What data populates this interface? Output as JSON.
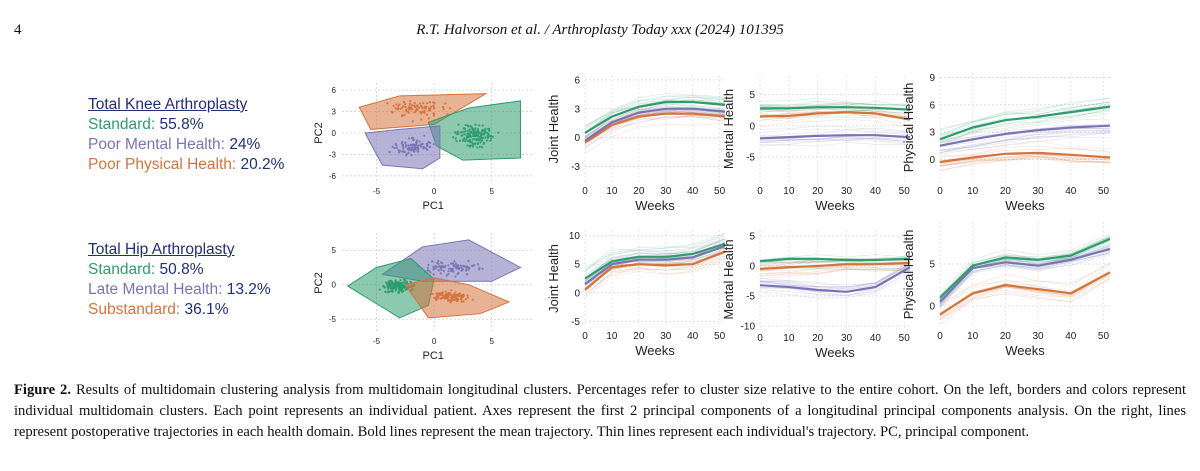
{
  "header": {
    "page_number": "4",
    "running_title": "R.T. Halvorson et al. / Arthroplasty Today xxx (2024) 101395"
  },
  "colors": {
    "green": "#2e9d6e",
    "purple": "#7a74b6",
    "orange": "#d5733c",
    "navy": "#1f2f7a"
  },
  "knee_legend": {
    "title": "Total Knee Arthroplasty",
    "items": [
      {
        "label": "Standard:",
        "value": "55.8%"
      },
      {
        "label": "Poor Mental Health:",
        "value": "24%"
      },
      {
        "label": "Poor Physical Health:",
        "value": "20.2%"
      }
    ]
  },
  "hip_legend": {
    "title": "Total Hip Arthroplasty",
    "items": [
      {
        "label": "Standard:",
        "value": "50.8%"
      },
      {
        "label": "Late Mental Health:",
        "value": "13.2%"
      },
      {
        "label": "Substandard:",
        "value": "36.1%"
      }
    ]
  },
  "chart_data": [
    {
      "id": "knee-pca",
      "type": "scatter",
      "title": "Total Knee Arthroplasty PCA",
      "xlabel": "PC1",
      "ylabel": "PC2",
      "xlim": [
        -8,
        8.5
      ],
      "ylim": [
        -7,
        7
      ],
      "xticks": [
        -5,
        0,
        5
      ],
      "yticks": [
        6,
        3,
        0,
        -3,
        -6
      ],
      "clusters": [
        {
          "name": "Poor Physical Health",
          "color": "orange",
          "n": 85,
          "center": [
            -1.5,
            3.3
          ],
          "spread": [
            2.8,
            1.6
          ],
          "hull": [
            [
              -6.5,
              3.6
            ],
            [
              -3,
              5.2
            ],
            [
              4.5,
              5.5
            ],
            [
              0,
              1.2
            ],
            [
              -5.5,
              0.5
            ]
          ]
        },
        {
          "name": "Standard",
          "color": "green",
          "n": 160,
          "center": [
            3.5,
            -0.4
          ],
          "spread": [
            2.1,
            1.9
          ],
          "hull": [
            [
              0.2,
              -1.8
            ],
            [
              -0.5,
              1.5
            ],
            [
              3,
              3.5
            ],
            [
              7.5,
              4.5
            ],
            [
              7.5,
              -3.5
            ],
            [
              2.5,
              -3.8
            ]
          ]
        },
        {
          "name": "Poor Mental Health",
          "color": "purple",
          "n": 90,
          "center": [
            -1.8,
            -1.9
          ],
          "spread": [
            2.4,
            1.5
          ],
          "hull": [
            [
              -6,
              0
            ],
            [
              -4.5,
              -4.5
            ],
            [
              -1,
              -5
            ],
            [
              0.5,
              -3.5
            ],
            [
              0.5,
              1
            ],
            [
              -3,
              0.5
            ]
          ]
        }
      ]
    },
    {
      "id": "hip-pca",
      "type": "scatter",
      "title": "Total Hip Arthroplasty PCA",
      "xlabel": "PC1",
      "ylabel": "PC2",
      "xlim": [
        -8,
        8.5
      ],
      "ylim": [
        -7,
        7.5
      ],
      "xticks": [
        -5,
        0,
        5
      ],
      "yticks": [
        5,
        0,
        -5
      ],
      "clusters": [
        {
          "name": "Late Mental Health",
          "color": "purple",
          "n": 90,
          "center": [
            1.5,
            2.5
          ],
          "spread": [
            3.0,
            1.6
          ],
          "hull": [
            [
              -4.5,
              1.5
            ],
            [
              -1,
              5.5
            ],
            [
              3,
              6.5
            ],
            [
              7.5,
              2.5
            ],
            [
              5,
              0.5
            ],
            [
              -1,
              0.5
            ]
          ]
        },
        {
          "name": "Standard",
          "color": "green",
          "n": 150,
          "center": [
            -3.2,
            -0.2
          ],
          "spread": [
            1.8,
            1.3
          ],
          "hull": [
            [
              -7.5,
              -0.2
            ],
            [
              -5,
              2.5
            ],
            [
              -2,
              3.8
            ],
            [
              0,
              0.8
            ],
            [
              -0.5,
              -3
            ],
            [
              -3,
              -4.8
            ]
          ]
        },
        {
          "name": "Substandard",
          "color": "orange",
          "n": 110,
          "center": [
            1.5,
            -1.8
          ],
          "spread": [
            2.0,
            1.1
          ],
          "hull": [
            [
              -2.5,
              0
            ],
            [
              0,
              1
            ],
            [
              3,
              0
            ],
            [
              6.5,
              -2.5
            ],
            [
              4,
              -4.2
            ],
            [
              -0.5,
              -4.8
            ]
          ]
        }
      ]
    },
    {
      "id": "knee-joint",
      "type": "line",
      "xlabel": "Weeks",
      "ylabel": "Joint Health",
      "xlim": [
        0,
        52
      ],
      "ylim": [
        -4.6,
        6.4
      ],
      "xticks": [
        0,
        10,
        20,
        30,
        40,
        50
      ],
      "yticks": [
        6,
        3,
        0,
        -3
      ],
      "x": [
        0,
        10,
        20,
        30,
        40,
        52
      ],
      "series": [
        {
          "name": "Poor Physical Health",
          "color": "orange",
          "values": [
            -0.5,
            1.3,
            2.2,
            2.5,
            2.5,
            2.2
          ]
        },
        {
          "name": "Poor Mental Health",
          "color": "purple",
          "values": [
            -0.3,
            1.6,
            2.6,
            3.0,
            3.0,
            2.7
          ]
        },
        {
          "name": "Standard",
          "color": "green",
          "values": [
            0.5,
            2.2,
            3.2,
            3.7,
            3.7,
            3.4
          ]
        }
      ]
    },
    {
      "id": "knee-mental",
      "type": "line",
      "xlabel": "Weeks",
      "ylabel": "Mental Health",
      "xlim": [
        0,
        52
      ],
      "ylim": [
        -9,
        8
      ],
      "xticks": [
        0,
        10,
        20,
        30,
        40,
        50
      ],
      "yticks": [
        5,
        0,
        -5
      ],
      "x": [
        0,
        10,
        20,
        30,
        40,
        52
      ],
      "series": [
        {
          "name": "Poor Mental Health",
          "color": "purple",
          "values": [
            -2.0,
            -1.8,
            -1.6,
            -1.5,
            -1.5,
            -1.8
          ]
        },
        {
          "name": "Poor Physical Health",
          "color": "orange",
          "values": [
            1.5,
            1.6,
            2.0,
            2.2,
            2.0,
            1.0
          ]
        },
        {
          "name": "Standard",
          "color": "green",
          "values": [
            2.8,
            2.8,
            3.0,
            3.0,
            2.9,
            2.6
          ]
        }
      ]
    },
    {
      "id": "knee-physical",
      "type": "line",
      "xlabel": "Weeks",
      "ylabel": "Physical Health",
      "xlim": [
        0,
        52
      ],
      "ylim": [
        -2.5,
        9.5
      ],
      "xticks": [
        0,
        10,
        20,
        30,
        40,
        50
      ],
      "yticks": [
        9,
        6,
        3,
        0
      ],
      "x": [
        0,
        10,
        20,
        30,
        40,
        52
      ],
      "series": [
        {
          "name": "Poor Physical Health",
          "color": "orange",
          "values": [
            -0.3,
            0.2,
            0.6,
            0.7,
            0.5,
            0.2
          ]
        },
        {
          "name": "Poor Mental Health",
          "color": "purple",
          "values": [
            1.5,
            2.2,
            2.8,
            3.2,
            3.5,
            3.7
          ]
        },
        {
          "name": "Standard",
          "color": "green",
          "values": [
            2.2,
            3.5,
            4.3,
            4.7,
            5.2,
            5.8
          ]
        }
      ]
    },
    {
      "id": "hip-joint",
      "type": "line",
      "xlabel": "Weeks",
      "ylabel": "Joint Health",
      "xlim": [
        0,
        52
      ],
      "ylim": [
        -6,
        11
      ],
      "xticks": [
        0,
        10,
        20,
        30,
        40,
        50
      ],
      "yticks": [
        10,
        5,
        0,
        -5
      ],
      "x": [
        0,
        10,
        20,
        30,
        40,
        52
      ],
      "series": [
        {
          "name": "Substandard",
          "color": "orange",
          "values": [
            0.5,
            4.5,
            5.0,
            4.8,
            5.0,
            7.2
          ]
        },
        {
          "name": "Late Mental Health",
          "color": "purple",
          "values": [
            1.5,
            5.0,
            5.8,
            5.8,
            6.2,
            8.2
          ]
        },
        {
          "name": "Standard",
          "color": "green",
          "values": [
            2.5,
            5.5,
            6.3,
            6.3,
            6.8,
            8.6
          ]
        }
      ]
    },
    {
      "id": "hip-mental",
      "type": "line",
      "xlabel": "Weeks",
      "ylabel": "Mental Health",
      "xlim": [
        0,
        52
      ],
      "ylim": [
        -10.5,
        6
      ],
      "xticks": [
        0,
        10,
        20,
        30,
        40,
        50
      ],
      "yticks": [
        5,
        0,
        -5,
        -10
      ],
      "x": [
        0,
        10,
        20,
        30,
        40,
        52
      ],
      "series": [
        {
          "name": "Late Mental Health",
          "color": "purple",
          "values": [
            -3.2,
            -3.5,
            -4.0,
            -4.3,
            -3.5,
            -0.2
          ]
        },
        {
          "name": "Substandard",
          "color": "orange",
          "values": [
            -0.5,
            -0.2,
            0.0,
            0.3,
            0.3,
            0.5
          ]
        },
        {
          "name": "Standard",
          "color": "green",
          "values": [
            0.8,
            1.2,
            1.2,
            1.0,
            1.0,
            1.2
          ]
        }
      ]
    },
    {
      "id": "hip-physical",
      "type": "line",
      "xlabel": "Weeks",
      "ylabel": "Physical Health",
      "xlim": [
        0,
        52
      ],
      "ylim": [
        -2.5,
        10
      ],
      "xticks": [
        0,
        10,
        20,
        30,
        40,
        50
      ],
      "yticks": [
        5,
        0
      ],
      "x": [
        0,
        10,
        20,
        30,
        40,
        52
      ],
      "series": [
        {
          "name": "Substandard",
          "color": "orange",
          "values": [
            -1.0,
            1.5,
            2.5,
            2.0,
            1.5,
            4.0
          ]
        },
        {
          "name": "Late Mental Health",
          "color": "purple",
          "values": [
            0.5,
            4.5,
            5.2,
            4.8,
            5.5,
            6.8
          ]
        },
        {
          "name": "Standard",
          "color": "green",
          "values": [
            1.0,
            4.8,
            5.8,
            5.5,
            6.0,
            8.0
          ]
        }
      ]
    }
  ],
  "caption": {
    "label": "Figure 2.",
    "text": "Results of multidomain clustering analysis from multidomain longitudinal clusters. Percentages refer to cluster size relative to the entire cohort. On the left, borders and colors represent individual multidomain clusters. Each point represents an individual patient. Axes represent the first 2 principal components of a longitudinal principal components analysis. On the right, lines represent postoperative trajectories in each health domain. Bold lines represent the mean trajectory. Thin lines represent each individual's trajectory. PC, principal component."
  }
}
